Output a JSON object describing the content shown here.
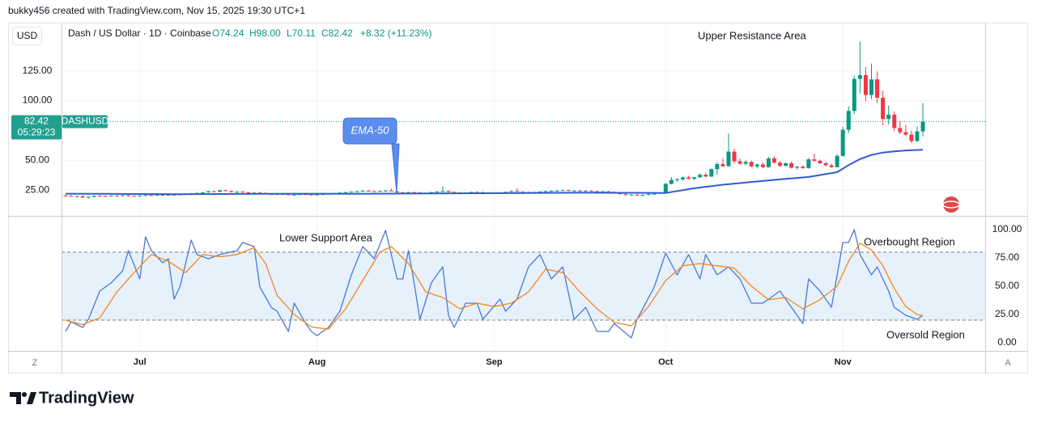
{
  "header": {
    "attribution": "bukky456 created with TradingView.com, Nov 15, 2025 19:30 UTC+1"
  },
  "chart_data": {
    "type": "candlestick",
    "currency": "USD",
    "symbol_legend": "Dash / US Dollar · 1D · Coinbase",
    "ohlc_legend": [
      "O74.24",
      "H98.00",
      "L70.11",
      "C82.42",
      "+8.32 (+11.23%)"
    ],
    "xlim": [
      -0.7,
      160.9
    ],
    "xticks": [
      {
        "value": 13,
        "label": "Jul"
      },
      {
        "value": 44,
        "label": "Aug"
      },
      {
        "value": 75,
        "label": "Sep"
      },
      {
        "value": 105,
        "label": "Oct"
      },
      {
        "value": 136,
        "label": "Nov"
      }
    ],
    "ylim": [
      3.4,
      165.5
    ],
    "yticks": [
      {
        "value": 25,
        "label": "25.00"
      },
      {
        "value": 50,
        "label": "50.00"
      },
      {
        "value": 100,
        "label": "100.00"
      },
      {
        "value": 125,
        "label": "125.00"
      }
    ],
    "grid": true,
    "up_color": "#089981",
    "down_color": "#f23645",
    "ohlc": [
      [
        20.5,
        21.2,
        19.8,
        20.1
      ],
      [
        20.1,
        20.8,
        19.2,
        19.5
      ],
      [
        19.5,
        20.3,
        18.8,
        19.9
      ],
      [
        19.9,
        20.4,
        18.5,
        18.9
      ],
      [
        18.9,
        19.6,
        17.9,
        19.3
      ],
      [
        19.3,
        20.6,
        19.0,
        20.2
      ],
      [
        20.2,
        20.9,
        19.7,
        20.0
      ],
      [
        20.0,
        20.5,
        19.4,
        19.8
      ],
      [
        19.8,
        20.6,
        19.5,
        20.3
      ],
      [
        20.3,
        20.8,
        19.8,
        20.1
      ],
      [
        20.1,
        20.9,
        19.9,
        20.6
      ],
      [
        20.6,
        21.0,
        19.9,
        20.2
      ],
      [
        20.2,
        20.7,
        19.6,
        19.9
      ],
      [
        19.9,
        20.6,
        19.5,
        20.4
      ],
      [
        20.4,
        21.0,
        20.0,
        20.7
      ],
      [
        20.7,
        21.1,
        20.2,
        20.5
      ],
      [
        20.5,
        21.2,
        20.3,
        21.0
      ],
      [
        21.0,
        21.4,
        20.5,
        20.8
      ],
      [
        20.8,
        21.3,
        20.4,
        21.1
      ],
      [
        21.1,
        21.5,
        20.7,
        20.9
      ],
      [
        20.9,
        21.6,
        20.6,
        21.4
      ],
      [
        21.4,
        22.3,
        21.1,
        22.0
      ],
      [
        22.0,
        22.6,
        21.5,
        21.8
      ],
      [
        21.8,
        22.9,
        21.6,
        22.6
      ],
      [
        22.6,
        23.4,
        22.2,
        23.1
      ],
      [
        23.1,
        24.3,
        22.8,
        24.0
      ],
      [
        24.0,
        24.6,
        23.2,
        23.5
      ],
      [
        23.5,
        25.1,
        23.3,
        24.8
      ],
      [
        24.8,
        25.3,
        23.9,
        24.2
      ],
      [
        24.2,
        24.7,
        23.1,
        23.4
      ],
      [
        23.4,
        24.0,
        22.6,
        23.7
      ],
      [
        23.7,
        24.2,
        22.9,
        23.1
      ],
      [
        23.1,
        23.6,
        22.2,
        22.5
      ],
      [
        22.5,
        23.3,
        22.0,
        22.9
      ],
      [
        22.9,
        23.5,
        22.3,
        22.6
      ],
      [
        22.6,
        23.1,
        21.4,
        21.7
      ],
      [
        21.7,
        22.2,
        20.9,
        21.3
      ],
      [
        21.3,
        22.0,
        20.8,
        21.8
      ],
      [
        21.8,
        22.4,
        21.2,
        21.5
      ],
      [
        21.5,
        22.0,
        20.6,
        20.9
      ],
      [
        20.9,
        21.5,
        20.2,
        21.2
      ],
      [
        21.2,
        21.9,
        20.8,
        21.6
      ],
      [
        21.6,
        22.1,
        21.0,
        21.4
      ],
      [
        21.4,
        21.8,
        20.5,
        20.8
      ],
      [
        20.8,
        21.6,
        20.5,
        21.3
      ],
      [
        21.3,
        22.0,
        20.9,
        21.7
      ],
      [
        21.7,
        22.3,
        21.2,
        22.0
      ],
      [
        22.0,
        22.8,
        21.7,
        22.5
      ],
      [
        22.5,
        23.2,
        22.1,
        22.9
      ],
      [
        22.9,
        23.6,
        22.4,
        23.3
      ],
      [
        23.3,
        24.0,
        22.8,
        23.7
      ],
      [
        23.7,
        24.4,
        23.2,
        23.9
      ],
      [
        23.9,
        24.8,
        23.5,
        24.5
      ],
      [
        24.5,
        25.2,
        23.9,
        24.1
      ],
      [
        24.1,
        24.6,
        23.3,
        23.6
      ],
      [
        23.6,
        24.5,
        23.4,
        24.3
      ],
      [
        24.3,
        25.1,
        23.8,
        24.6
      ],
      [
        24.6,
        26.2,
        24.2,
        23.9
      ],
      [
        23.9,
        24.3,
        22.8,
        23.1
      ],
      [
        23.1,
        23.7,
        22.4,
        22.8
      ],
      [
        22.8,
        23.5,
        22.2,
        23.2
      ],
      [
        23.2,
        23.8,
        22.7,
        23.0
      ],
      [
        23.0,
        23.4,
        22.1,
        22.4
      ],
      [
        22.4,
        23.1,
        21.9,
        22.8
      ],
      [
        22.8,
        23.6,
        22.5,
        23.3
      ],
      [
        23.3,
        24.1,
        23.0,
        23.8
      ],
      [
        23.8,
        28.0,
        23.4,
        24.2
      ],
      [
        24.2,
        24.7,
        23.1,
        23.4
      ],
      [
        23.4,
        23.9,
        22.6,
        22.9
      ],
      [
        22.9,
        23.4,
        22.2,
        22.6
      ],
      [
        22.6,
        23.2,
        22.1,
        22.9
      ],
      [
        22.9,
        23.7,
        22.5,
        23.4
      ],
      [
        23.4,
        24.0,
        22.9,
        23.2
      ],
      [
        23.2,
        23.8,
        22.6,
        22.8
      ],
      [
        22.8,
        23.3,
        22.1,
        22.5
      ],
      [
        22.5,
        23.1,
        22.0,
        22.8
      ],
      [
        22.8,
        23.4,
        22.3,
        23.1
      ],
      [
        23.1,
        23.8,
        22.7,
        23.5
      ],
      [
        23.5,
        24.6,
        23.2,
        24.2
      ],
      [
        24.2,
        26.5,
        23.9,
        23.6
      ],
      [
        23.6,
        24.1,
        22.9,
        23.3
      ],
      [
        23.3,
        23.8,
        22.6,
        23.0
      ],
      [
        23.0,
        23.7,
        22.5,
        23.4
      ],
      [
        23.4,
        24.0,
        22.9,
        23.8
      ],
      [
        23.8,
        24.5,
        23.4,
        24.1
      ],
      [
        24.1,
        24.8,
        23.6,
        24.4
      ],
      [
        24.4,
        25.0,
        23.9,
        24.6
      ],
      [
        24.6,
        25.3,
        24.1,
        24.9
      ],
      [
        24.9,
        25.4,
        24.0,
        24.3
      ],
      [
        24.3,
        24.9,
        23.8,
        24.6
      ],
      [
        24.6,
        25.1,
        23.9,
        24.2
      ],
      [
        24.2,
        24.8,
        23.7,
        24.5
      ],
      [
        24.5,
        25.0,
        23.8,
        24.1
      ],
      [
        24.1,
        24.6,
        23.3,
        23.7
      ],
      [
        23.7,
        24.3,
        23.1,
        23.9
      ],
      [
        23.9,
        24.4,
        23.2,
        23.5
      ],
      [
        23.5,
        24.0,
        22.4,
        22.7
      ],
      [
        22.7,
        23.1,
        21.3,
        21.6
      ],
      [
        21.6,
        22.2,
        20.5,
        20.9
      ],
      [
        20.9,
        21.6,
        20.3,
        21.2
      ],
      [
        21.2,
        21.7,
        20.4,
        20.7
      ],
      [
        20.7,
        21.4,
        20.1,
        21.0
      ],
      [
        21.0,
        21.9,
        20.6,
        21.6
      ],
      [
        21.6,
        22.4,
        21.2,
        22.0
      ],
      [
        22.0,
        23.5,
        21.8,
        23.1
      ],
      [
        23.1,
        31.0,
        22.8,
        30.2
      ],
      [
        30.2,
        36.0,
        29.8,
        33.5
      ],
      [
        33.5,
        35.2,
        32.1,
        34.0
      ],
      [
        34.0,
        36.5,
        32.8,
        35.6
      ],
      [
        35.6,
        37.0,
        33.9,
        34.5
      ],
      [
        34.5,
        36.1,
        33.2,
        35.8
      ],
      [
        35.8,
        38.9,
        35.0,
        37.9
      ],
      [
        37.9,
        39.5,
        35.6,
        36.4
      ],
      [
        36.4,
        43.2,
        35.9,
        42.6
      ],
      [
        42.6,
        48.5,
        38.0,
        46.8
      ],
      [
        46.8,
        52.0,
        44.2,
        45.1
      ],
      [
        45.1,
        72.4,
        44.6,
        57.3
      ],
      [
        57.3,
        59.8,
        47.5,
        49.2
      ],
      [
        49.2,
        51.5,
        46.3,
        47.1
      ],
      [
        47.1,
        50.4,
        45.8,
        48.6
      ],
      [
        48.6,
        49.9,
        44.1,
        44.9
      ],
      [
        44.9,
        47.3,
        43.2,
        46.5
      ],
      [
        46.5,
        48.0,
        43.6,
        44.2
      ],
      [
        44.2,
        52.8,
        43.8,
        51.6
      ],
      [
        51.6,
        53.4,
        47.2,
        48.0
      ],
      [
        48.0,
        49.6,
        44.5,
        45.3
      ],
      [
        45.3,
        48.2,
        44.9,
        47.6
      ],
      [
        47.6,
        48.9,
        43.1,
        43.8
      ],
      [
        43.8,
        45.2,
        42.0,
        44.6
      ],
      [
        44.6,
        45.9,
        42.8,
        43.5
      ],
      [
        43.5,
        51.9,
        43.0,
        50.8
      ],
      [
        50.8,
        55.6,
        48.9,
        49.6
      ],
      [
        49.6,
        50.7,
        46.8,
        47.5
      ],
      [
        47.5,
        48.6,
        44.9,
        45.8
      ],
      [
        45.8,
        47.1,
        43.6,
        44.3
      ],
      [
        44.3,
        55.2,
        43.9,
        53.7
      ],
      [
        53.7,
        78.2,
        52.9,
        75.6
      ],
      [
        75.6,
        95.3,
        72.8,
        91.4
      ],
      [
        91.4,
        121.0,
        88.6,
        118.3
      ],
      [
        118.3,
        149.7,
        106.2,
        121.5
      ],
      [
        121.5,
        128.4,
        99.6,
        104.8
      ],
      [
        104.8,
        131.2,
        101.3,
        117.9
      ],
      [
        117.9,
        124.6,
        98.1,
        102.5
      ],
      [
        102.5,
        108.3,
        79.4,
        84.6
      ],
      [
        84.6,
        95.7,
        80.2,
        88.3
      ],
      [
        88.3,
        91.0,
        74.5,
        77.1
      ],
      [
        77.1,
        83.2,
        71.9,
        73.6
      ],
      [
        73.6,
        79.8,
        70.2,
        71.5
      ],
      [
        71.5,
        74.9,
        64.3,
        66.2
      ],
      [
        66.2,
        78.4,
        65.1,
        74.24
      ],
      [
        74.24,
        98.0,
        70.11,
        82.42
      ]
    ],
    "ema": {
      "name": "EMA-50",
      "color": "#2f5bd3",
      "x": [
        0,
        10,
        20,
        30,
        40,
        50,
        60,
        70,
        80,
        90,
        100,
        105,
        110,
        115,
        120,
        125,
        130,
        135,
        137,
        139,
        141,
        143,
        145,
        147,
        150
      ],
      "values": [
        22,
        21.8,
        21.6,
        21.8,
        22,
        21.9,
        22.1,
        22.3,
        22.5,
        22.8,
        22.7,
        22.6,
        26.5,
        29.5,
        31.8,
        34,
        36,
        40,
        46,
        51,
        54.5,
        56.5,
        57.5,
        58.3,
        58.8
      ]
    },
    "last_price": {
      "value": 82.42,
      "symbol": "DASHUSD",
      "countdown": "05:29:23",
      "color": "#22a08f"
    },
    "annotations": [
      "Upper Resistance Area",
      "Lower Support Area",
      "Overbought Region",
      "Oversold Region"
    ],
    "indicator": {
      "type": "line",
      "ylim": [
        -7.1,
        111.4
      ],
      "yticks": [
        {
          "value": 0,
          "label": "0.00"
        },
        {
          "value": 25,
          "label": "25.00"
        },
        {
          "value": 50,
          "label": "50.00"
        },
        {
          "value": 75,
          "label": "75.00"
        },
        {
          "value": 100,
          "label": "100.00"
        }
      ],
      "levels": [
        80,
        20
      ],
      "band_color": "#e6f1fc",
      "series": [
        {
          "color": "#4a78d8",
          "x": [
            0,
            1,
            3,
            4,
            6,
            8,
            10,
            11,
            13,
            14,
            15,
            17,
            18,
            19,
            20,
            22,
            23,
            25,
            27,
            30,
            31,
            33,
            34,
            36,
            37,
            39,
            40,
            42,
            43,
            44,
            46,
            48,
            50,
            52,
            54,
            56,
            58,
            59,
            60,
            61,
            62,
            64,
            66,
            67,
            68,
            70,
            72,
            73,
            76,
            77,
            79,
            81,
            83,
            85,
            87,
            89,
            91,
            93,
            95,
            96,
            99,
            100,
            103,
            105,
            107,
            109,
            111,
            112,
            114,
            116,
            118,
            120,
            122,
            125,
            127,
            129,
            130,
            132,
            133,
            134,
            136,
            137,
            138,
            139,
            141,
            142,
            144,
            145,
            147,
            149,
            150
          ],
          "values": [
            10,
            18.6,
            13.6,
            20.7,
            45.7,
            52.9,
            63.6,
            81.4,
            56.4,
            93.6,
            81.4,
            70.7,
            74.3,
            38.6,
            49.3,
            90.7,
            77.9,
            74.3,
            77.9,
            81.4,
            88.6,
            85,
            49.3,
            31.4,
            27.9,
            10,
            35,
            17.1,
            10,
            6.4,
            13.6,
            27.9,
            60,
            85,
            74.3,
            99.3,
            56.4,
            56.4,
            81.4,
            52.9,
            20.7,
            52.9,
            67.1,
            24.3,
            13.6,
            35,
            35,
            20.7,
            38.6,
            27.9,
            38.6,
            67.1,
            77.9,
            56.4,
            67.1,
            20.7,
            31.4,
            10,
            10,
            17.1,
            4.3,
            20.7,
            49.3,
            79.3,
            60,
            77.9,
            56.4,
            77.9,
            60,
            67.1,
            56.4,
            35,
            35,
            45.7,
            31.4,
            17.1,
            56.4,
            45.7,
            38.6,
            31.4,
            88.6,
            88.6,
            100,
            77.9,
            60,
            67.1,
            45.7,
            31.4,
            24.3,
            20.7,
            24.3
          ]
        },
        {
          "color": "#f7861c",
          "x": [
            0,
            3,
            6,
            9,
            12,
            15,
            18,
            21,
            24,
            27,
            30,
            33,
            35,
            37,
            40,
            43,
            46,
            49,
            52,
            55,
            57,
            60,
            63,
            66,
            69,
            72,
            75,
            78,
            81,
            84,
            87,
            90,
            93,
            96,
            99,
            102,
            105,
            108,
            111,
            114,
            117,
            120,
            123,
            126,
            129,
            132,
            135,
            137,
            139,
            141,
            143,
            145,
            147,
            149,
            150
          ],
          "values": [
            20,
            16,
            22,
            45,
            62,
            78,
            72,
            62,
            78,
            76,
            78,
            84,
            70,
            42,
            25,
            14,
            12,
            30,
            55,
            80,
            85,
            70,
            45,
            40,
            30,
            35,
            32,
            35,
            45,
            65,
            62,
            45,
            30,
            18,
            15,
            32,
            55,
            68,
            70,
            68,
            66,
            50,
            38,
            40,
            30,
            38,
            50,
            72,
            88,
            82,
            68,
            48,
            32,
            25,
            24
          ]
        }
      ]
    }
  },
  "footer": {
    "brand": "TradingView",
    "left_button": "Z",
    "right_button": "A"
  }
}
